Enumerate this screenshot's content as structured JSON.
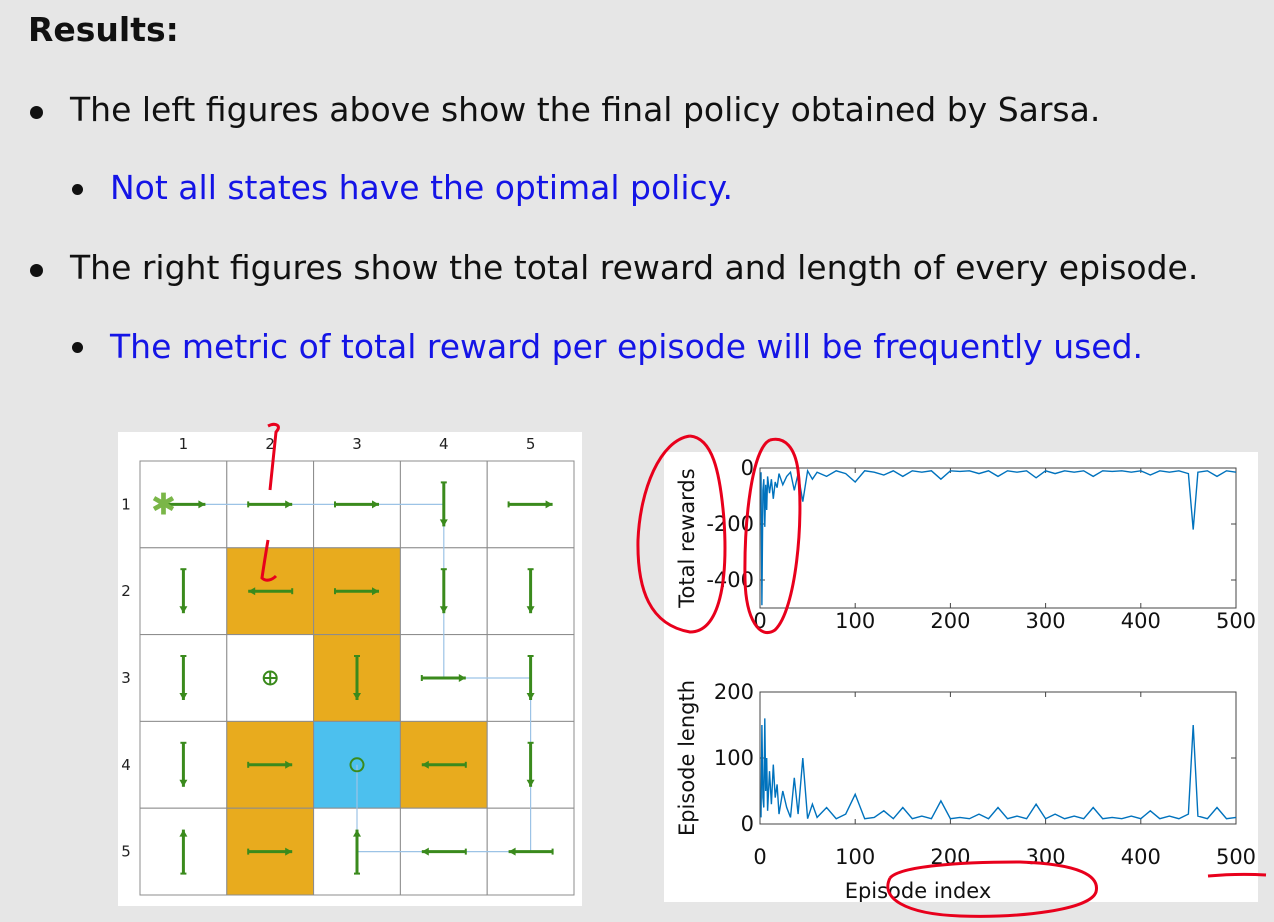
{
  "slide": {
    "heading": "Results:",
    "bullets": [
      {
        "text": "The left figures above show the final policy obtained by Sarsa.",
        "level": 1
      },
      {
        "text": "Not all states have the optimal policy.",
        "level": 2
      },
      {
        "text": "The right figures show the total reward and length of every episode.",
        "level": 1
      },
      {
        "text": "The metric of total reward per episode will be frequently used.",
        "level": 2
      }
    ]
  },
  "colors": {
    "forbidden": "#e8ab1e",
    "target": "#4cc0ee",
    "arrow": "#3a8a1c",
    "trajectory": "#9cc3e6",
    "series": "#0072bd",
    "annotation": "#e8001c",
    "bullet_blue": "#1414e6"
  },
  "grid": {
    "col_labels": [
      "1",
      "2",
      "3",
      "4",
      "5"
    ],
    "row_labels": [
      "1",
      "2",
      "3",
      "4",
      "5"
    ],
    "start_symbol": "✱",
    "cells": [
      [
        "start",
        "normal",
        "normal",
        "normal",
        "normal"
      ],
      [
        "normal",
        "forbidden",
        "forbidden",
        "normal",
        "normal"
      ],
      [
        "normal",
        "normal",
        "forbidden",
        "normal",
        "normal"
      ],
      [
        "normal",
        "forbidden",
        "target",
        "forbidden",
        "normal"
      ],
      [
        "normal",
        "forbidden",
        "normal",
        "normal",
        "normal"
      ]
    ],
    "policy": [
      [
        "right",
        "right",
        "right",
        "down",
        "right"
      ],
      [
        "down",
        "left",
        "right",
        "down",
        "down"
      ],
      [
        "down",
        "stay",
        "down",
        "right",
        "down"
      ],
      [
        "down",
        "right",
        "stay",
        "left",
        "down"
      ],
      [
        "up",
        "right",
        "up",
        "left",
        "left"
      ]
    ]
  },
  "chart_data": [
    {
      "type": "line",
      "title": "",
      "xlabel": "",
      "ylabel": "Total rewards",
      "xlim": [
        0,
        500
      ],
      "ylim": [
        -500,
        0
      ],
      "xticks": [
        "0",
        "100",
        "200",
        "300",
        "400",
        "500"
      ],
      "yticks": [
        "0",
        "-200",
        "-400"
      ],
      "series": [
        {
          "x": [
            1,
            2,
            3,
            4,
            5,
            6,
            7,
            8,
            10,
            12,
            14,
            16,
            18,
            20,
            24,
            28,
            32,
            36,
            40,
            45,
            50,
            55,
            60,
            70,
            80,
            90,
            100,
            110,
            120,
            130,
            140,
            150,
            160,
            170,
            180,
            190,
            200,
            210,
            220,
            230,
            240,
            250,
            260,
            270,
            280,
            290,
            300,
            310,
            320,
            330,
            340,
            350,
            360,
            370,
            380,
            390,
            400,
            410,
            420,
            430,
            440,
            450,
            455,
            460,
            470,
            480,
            490,
            500
          ],
          "y": [
            -15,
            -490,
            -80,
            -40,
            -210,
            -60,
            -150,
            -30,
            -90,
            -40,
            -110,
            -50,
            -70,
            -20,
            -60,
            -30,
            -15,
            -80,
            -20,
            -120,
            -10,
            -40,
            -15,
            -30,
            -10,
            -20,
            -50,
            -10,
            -15,
            -25,
            -10,
            -30,
            -10,
            -15,
            -10,
            -40,
            -10,
            -12,
            -10,
            -20,
            -10,
            -30,
            -10,
            -15,
            -10,
            -35,
            -10,
            -20,
            -10,
            -15,
            -10,
            -30,
            -10,
            -12,
            -10,
            -15,
            -10,
            -25,
            -10,
            -15,
            -10,
            -20,
            -220,
            -15,
            -10,
            -30,
            -10,
            -15
          ]
        }
      ]
    },
    {
      "type": "line",
      "title": "",
      "xlabel": "Episode index",
      "ylabel": "Episode length",
      "xlim": [
        0,
        500
      ],
      "ylim": [
        0,
        200
      ],
      "xticks": [
        "0",
        "100",
        "200",
        "300",
        "400",
        "500"
      ],
      "yticks": [
        "0",
        "100",
        "200"
      ],
      "series": [
        {
          "x": [
            1,
            2,
            3,
            4,
            5,
            6,
            7,
            8,
            10,
            12,
            14,
            16,
            18,
            20,
            24,
            28,
            32,
            36,
            40,
            45,
            50,
            55,
            60,
            70,
            80,
            90,
            100,
            110,
            120,
            130,
            140,
            150,
            160,
            170,
            180,
            190,
            200,
            210,
            220,
            230,
            240,
            250,
            260,
            270,
            280,
            290,
            300,
            310,
            320,
            330,
            340,
            350,
            360,
            370,
            380,
            390,
            400,
            410,
            420,
            430,
            440,
            450,
            455,
            460,
            470,
            480,
            490,
            500
          ],
          "y": [
            10,
            150,
            40,
            25,
            160,
            50,
            100,
            20,
            80,
            30,
            90,
            40,
            60,
            15,
            50,
            25,
            10,
            70,
            15,
            100,
            8,
            30,
            10,
            25,
            8,
            15,
            45,
            8,
            10,
            20,
            8,
            25,
            8,
            12,
            8,
            35,
            8,
            10,
            8,
            15,
            8,
            25,
            8,
            12,
            8,
            30,
            8,
            15,
            8,
            12,
            8,
            25,
            8,
            10,
            8,
            12,
            8,
            20,
            8,
            12,
            8,
            15,
            150,
            12,
            8,
            25,
            8,
            10
          ]
        }
      ]
    }
  ]
}
